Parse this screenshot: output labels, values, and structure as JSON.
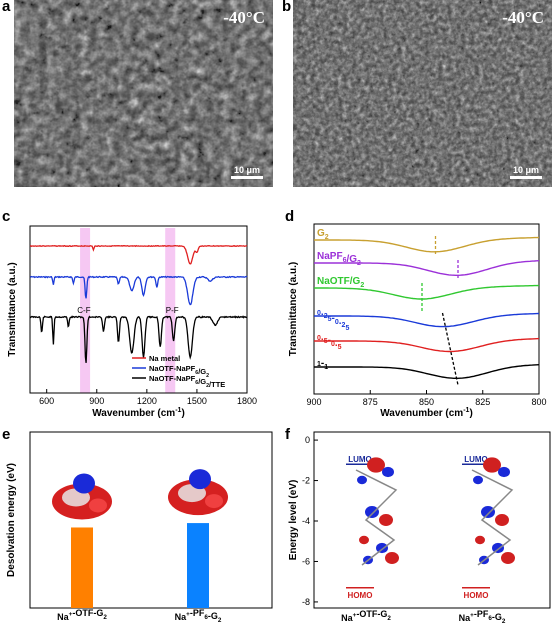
{
  "panels": {
    "a": {
      "label": "a",
      "temp": "-40°C",
      "scale": "10 μm"
    },
    "b": {
      "label": "b",
      "temp": "-40°C",
      "scale": "10 μm"
    },
    "c": {
      "label": "c"
    },
    "d": {
      "label": "d"
    },
    "e": {
      "label": "e"
    },
    "f": {
      "label": "f"
    }
  },
  "chart_data": [
    {
      "id": "c",
      "type": "line",
      "xlabel": "Wavenumber (cm-1)",
      "ylabel": "Transmittance (a.u.)",
      "xlim": [
        500,
        1800
      ],
      "xticks": [
        600,
        900,
        1200,
        1500,
        1800
      ],
      "annotations": [
        "C-F",
        "P-F"
      ],
      "highlight_bands": [
        [
          800,
          860
        ],
        [
          1310,
          1370
        ]
      ],
      "series": [
        {
          "name": "Na metal",
          "color": "#e02020"
        },
        {
          "name": "NaOTF-NaPF6/G2",
          "color": "#1a3ad8"
        },
        {
          "name": "NaOTF-NaPF6/G2/TTE",
          "color": "#000000"
        }
      ]
    },
    {
      "id": "d",
      "type": "line",
      "xlabel": "Wavenumber (cm-1)",
      "ylabel": "Transmittance (a.u.)",
      "xlim": [
        900,
        800
      ],
      "xticks": [
        900,
        875,
        850,
        825,
        800
      ],
      "series": [
        {
          "name": "G2",
          "color": "#c8a030",
          "min_at": 846
        },
        {
          "name": "NaPF6/G2",
          "color": "#9b30d8",
          "min_at": 836
        },
        {
          "name": "NaOTF/G2",
          "color": "#30c830",
          "min_at": 852
        },
        {
          "name": "0.25-0.25",
          "color": "#1a3ad8",
          "min_at": 842
        },
        {
          "name": "0.5-0.5",
          "color": "#e02020",
          "min_at": 839
        },
        {
          "name": "1-1",
          "color": "#000000",
          "min_at": 836
        }
      ]
    },
    {
      "id": "e",
      "type": "bar",
      "ylabel": "Desolvation energy (eV)",
      "categories": [
        "Na+-OTF-G2",
        "Na+-PF6-G2"
      ],
      "values": [
        1.83,
        1.93
      ],
      "colors": [
        "#ff8000",
        "#0a82ff"
      ],
      "ylim": [
        0,
        4
      ]
    },
    {
      "id": "f",
      "type": "diagram",
      "ylabel": "Energy level (eV)",
      "yticks": [
        0,
        -2,
        -4,
        -6,
        -8
      ],
      "ylim": [
        -8.3,
        0.4
      ],
      "categories": [
        "Na+-OTF-G2",
        "Na+-PF6-G2"
      ],
      "lumo_label": "LUMO",
      "homo_label": "HOMO"
    }
  ]
}
